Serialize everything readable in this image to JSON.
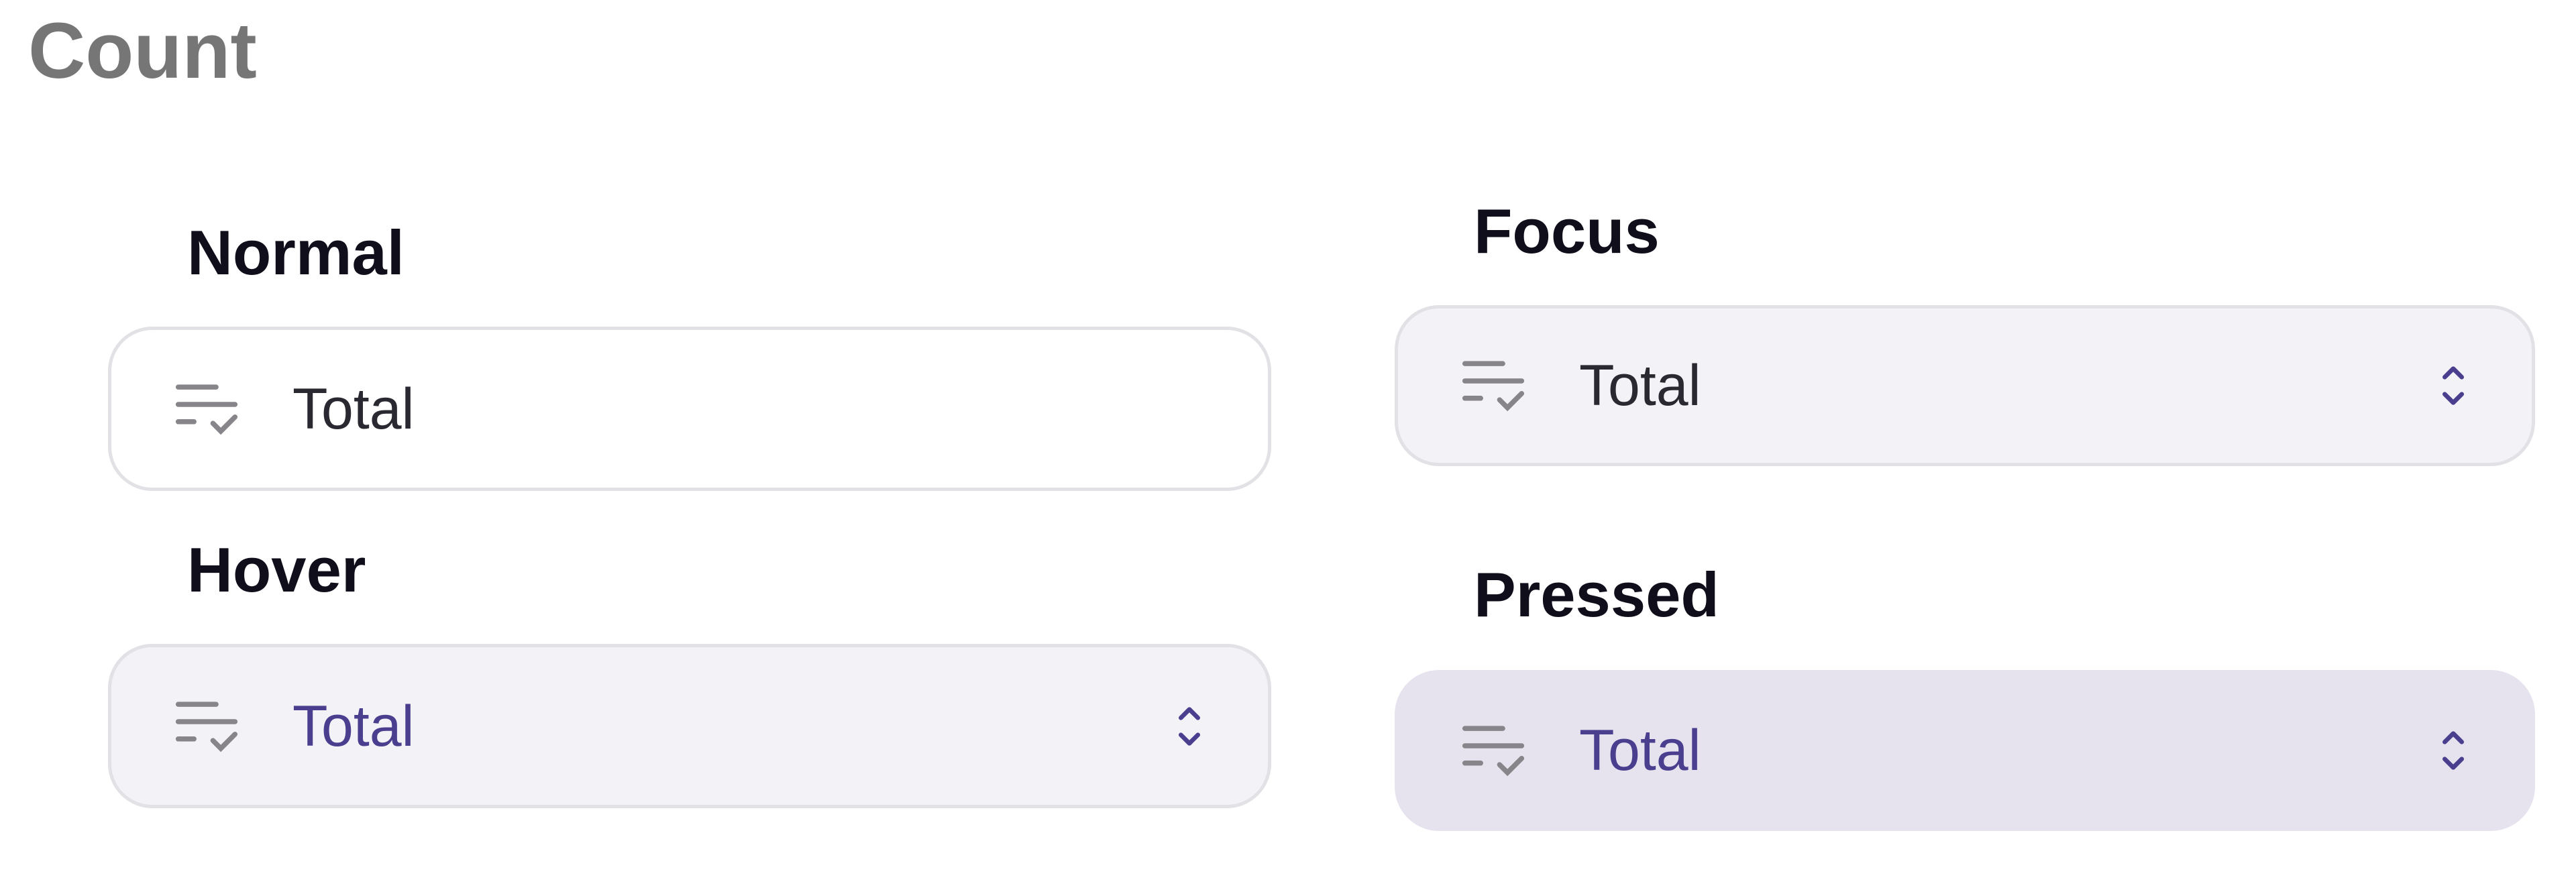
{
  "title": "Count",
  "colors": {
    "accent": "#4a3f8f",
    "hover_bg": "#f3f2f7",
    "pressed_bg": "#e6e3ef",
    "border": "#e2e1e6"
  },
  "states": [
    {
      "label": "Normal",
      "value": "Total",
      "icon": "list-check-icon",
      "chevron": false
    },
    {
      "label": "Hover",
      "value": "Total",
      "icon": "list-check-icon",
      "chevron": true
    },
    {
      "label": "Focus",
      "value": "Total",
      "icon": "list-check-icon",
      "chevron": true
    },
    {
      "label": "Pressed",
      "value": "Total",
      "icon": "list-check-icon",
      "chevron": true
    }
  ]
}
